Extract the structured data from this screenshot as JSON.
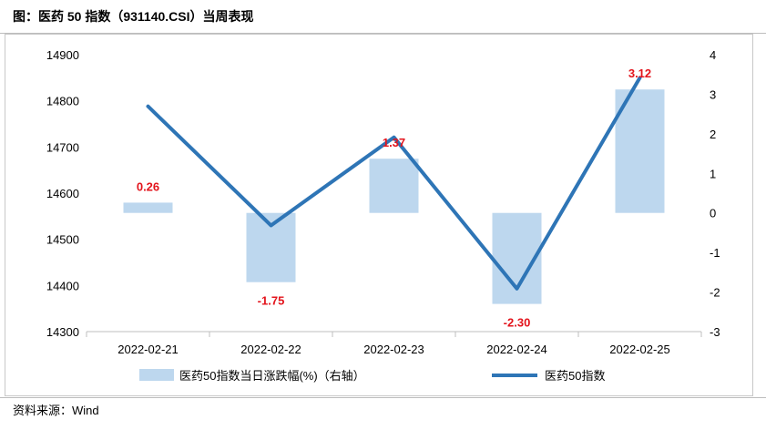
{
  "header": {
    "title": "图：医药 50 指数（931140.CSI）当周表现"
  },
  "footer": {
    "source": "资料来源：Wind"
  },
  "colors": {
    "bar": "#bdd7ee",
    "line": "#2e75b6",
    "data_label": "#e3141c"
  },
  "chart_data": {
    "type": "bar+line",
    "categories": [
      "2022-02-21",
      "2022-02-22",
      "2022-02-23",
      "2022-02-24",
      "2022-02-25"
    ],
    "series": [
      {
        "name": "医药50指数当日涨跌幅(%)（右轴）",
        "type": "bar",
        "axis": "right",
        "values": [
          0.26,
          -1.75,
          1.37,
          -2.3,
          3.12
        ],
        "data_labels": [
          "0.26",
          "-1.75",
          "1.37",
          "-2.30",
          "3.12"
        ]
      },
      {
        "name": "医药50指数",
        "type": "line",
        "axis": "left",
        "values": [
          14788,
          14530,
          14721,
          14393,
          14850
        ]
      }
    ],
    "left_axis": {
      "min": 14300,
      "max": 14900,
      "ticks": [
        14300,
        14400,
        14500,
        14600,
        14700,
        14800,
        14900
      ]
    },
    "right_axis": {
      "min": -3,
      "max": 4,
      "ticks": [
        -3,
        -2,
        -1,
        0,
        1,
        2,
        3,
        4
      ]
    },
    "grid": false,
    "legend_position": "bottom"
  }
}
